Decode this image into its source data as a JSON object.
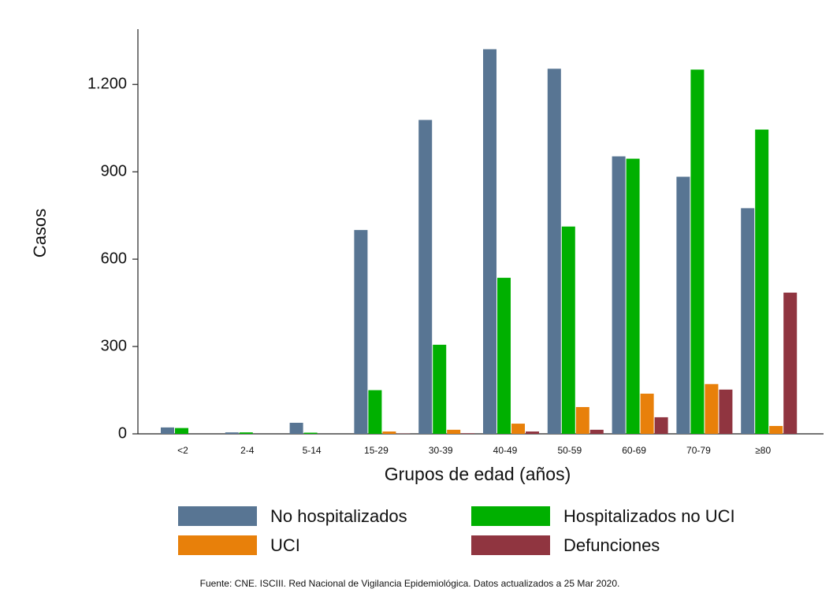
{
  "chart_data": {
    "type": "bar",
    "categories": [
      "<2",
      "2-4",
      "5-14",
      "15-29",
      "30-39",
      "40-49",
      "50-59",
      "60-69",
      "70-79",
      "≥80"
    ],
    "series": [
      {
        "name": "No hospitalizados",
        "color": "#587593",
        "values": [
          22,
          5,
          38,
          700,
          1078,
          1321,
          1254,
          953,
          883,
          775
        ]
      },
      {
        "name": "Hospitalizados no UCI",
        "color": "#00b000",
        "values": [
          20,
          5,
          4,
          150,
          306,
          536,
          712,
          945,
          1251,
          1045
        ]
      },
      {
        "name": "UCI",
        "color": "#e8800a",
        "values": [
          0,
          0,
          0,
          8,
          14,
          35,
          92,
          138,
          171,
          27
        ]
      },
      {
        "name": "Defunciones",
        "color": "#903540",
        "values": [
          0,
          0,
          0,
          1,
          2,
          8,
          14,
          57,
          152,
          485
        ]
      }
    ],
    "y_label": "Casos",
    "x_label": "Grupos de edad (años)",
    "ylim": [
      0,
      1390
    ],
    "yticks": [
      0,
      300,
      600,
      900,
      {
        "value": 1200,
        "label": "1.200"
      }
    ],
    "source": "Fuente: CNE. ISCIII. Red Nacional de Vigilancia Epidemiológica. Datos actualizados a 25 Mar 2020."
  }
}
